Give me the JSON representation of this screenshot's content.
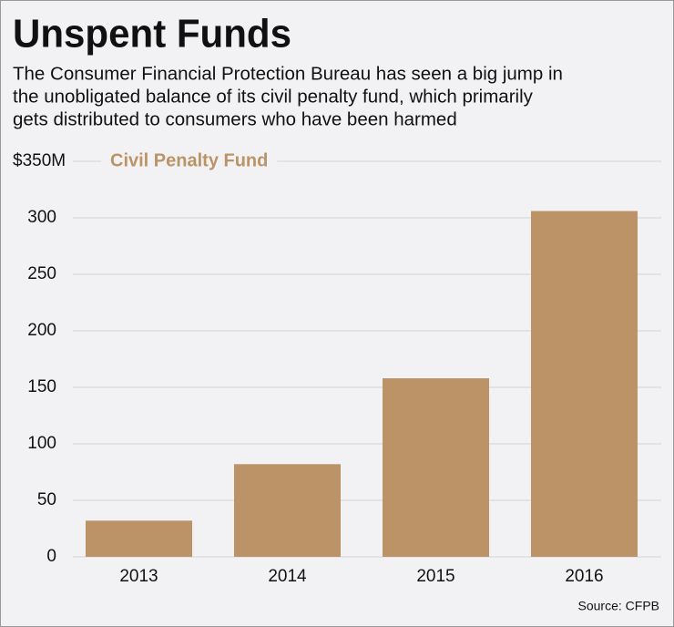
{
  "chart_data": {
    "type": "bar",
    "title": "Unspent Funds",
    "subtitle": [
      "The Consumer Financial Protection Bureau has seen a big jump in",
      "the unobligated balance of its civil penalty fund, which primarily",
      "gets distributed to consumers who have been harmed"
    ],
    "categories": [
      "2013",
      "2014",
      "2015",
      "2016"
    ],
    "series": [
      {
        "name": "Civil Penalty Fund",
        "color": "#bb9366",
        "values": [
          32,
          82,
          158,
          306
        ]
      }
    ],
    "ylim": [
      0,
      350
    ],
    "yticks": [
      0,
      50,
      100,
      150,
      200,
      250,
      300,
      {
        "value": 350,
        "label": "$350M"
      }
    ],
    "grid": true,
    "source": "Source: CFPB"
  }
}
